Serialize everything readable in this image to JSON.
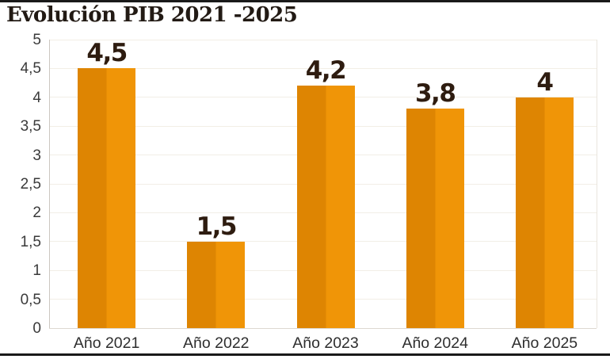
{
  "header": {
    "title": "Evolución PIB 2021 -2025"
  },
  "chart_data": {
    "type": "bar",
    "title": "Evolución PIB 2021 -2025",
    "categories": [
      "Año 2021",
      "Año 2022",
      "Año 2023",
      "Año 2024",
      "Año 2025"
    ],
    "values": [
      4.5,
      1.5,
      4.2,
      3.8,
      4
    ],
    "value_labels": [
      "4,5",
      "1,5",
      "4,2",
      "3,8",
      "4"
    ],
    "xlabel": "",
    "ylabel": "",
    "ylim": [
      0,
      5
    ],
    "y_tick_step": 0.5,
    "y_tick_labels": [
      "0",
      "0,5",
      "1",
      "1,5",
      "2",
      "2,5",
      "3",
      "3,5",
      "4",
      "4,5",
      "5"
    ],
    "grid": "horizontal every 0.5, very faint",
    "legend_position": "none",
    "decimal_separator": ",",
    "colors": {
      "bar_left_half": "#de8502",
      "bar_right_half": "#f09507",
      "value_label": "#2e1c10",
      "axis_text": "#3a3a3a",
      "title_text": "#221a14",
      "top_bottom_rule": "#1a1a1a",
      "gridline": "#f2eee6",
      "axis_line": "#ccc7c0"
    }
  }
}
